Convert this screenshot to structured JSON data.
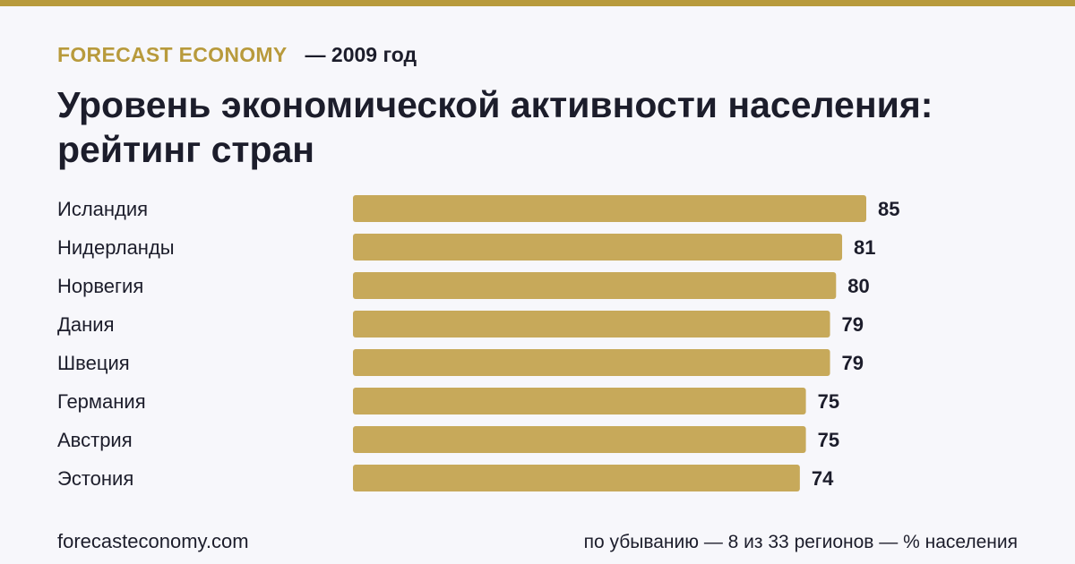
{
  "header": {
    "brand": "FORECAST ECONOMY",
    "year_text": "— 2009 год",
    "title": "Уровень экономической активности населения: рейтинг стран"
  },
  "footer": {
    "site": "forecasteconomy.com",
    "note": "по убыванию — 8 из 33 регионов — % населения"
  },
  "colors": {
    "bar": "#c7a95a",
    "accent": "#b89a3c",
    "text": "#1c1d2b"
  },
  "chart_data": {
    "type": "bar",
    "orientation": "horizontal",
    "categories": [
      "Исландия",
      "Нидерланды",
      "Норвегия",
      "Дания",
      "Швеция",
      "Германия",
      "Австрия",
      "Эстония"
    ],
    "values": [
      85,
      81,
      80,
      79,
      79,
      75,
      75,
      74
    ],
    "xlim": [
      0,
      85
    ],
    "grid": false,
    "legend": "none"
  }
}
